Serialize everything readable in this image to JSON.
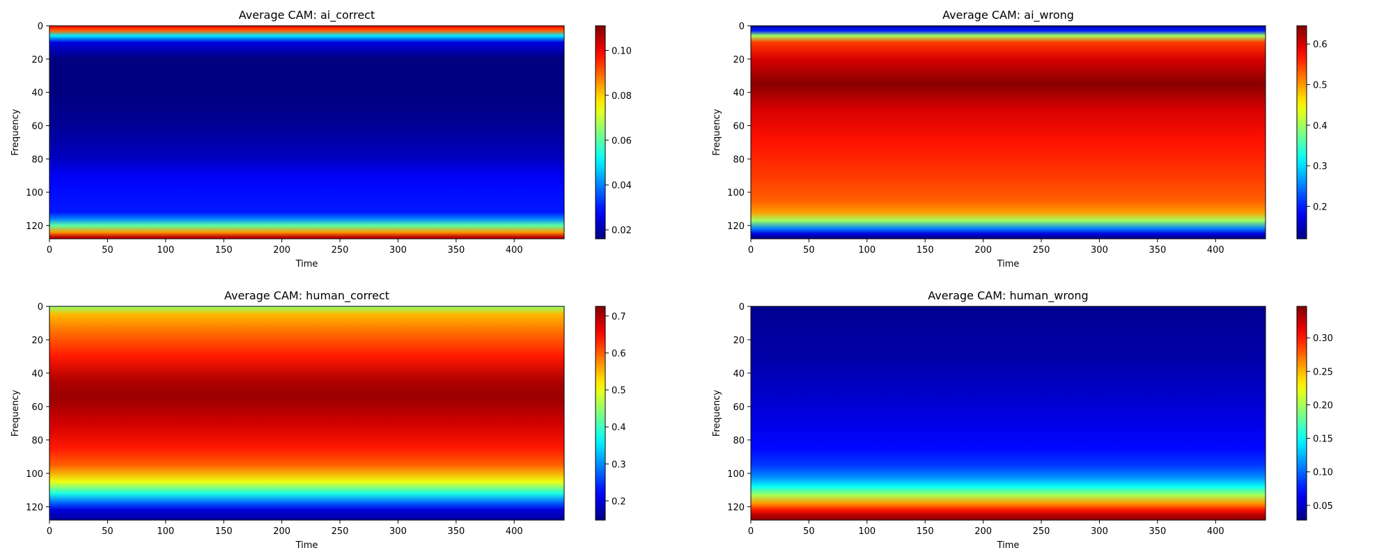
{
  "chart_data": [
    {
      "type": "heatmap",
      "title": "Average CAM: ai_correct",
      "xlabel": "Time",
      "ylabel": "Frequency",
      "xlim": [
        0,
        443
      ],
      "ylim": [
        128,
        0
      ],
      "xticks": [
        0,
        50,
        100,
        150,
        200,
        250,
        300,
        350,
        400
      ],
      "yticks": [
        0,
        20,
        40,
        60,
        80,
        100,
        120
      ],
      "colormap": "jet",
      "clim": [
        0.016,
        0.111
      ],
      "colorbar_ticks": [
        "0.02",
        "0.04",
        "0.06",
        "0.08",
        "0.10"
      ],
      "colorbar_tick_values": [
        0.02,
        0.04,
        0.06,
        0.08,
        0.1
      ],
      "row_profile": {
        "frequency": [
          0,
          3,
          6,
          10,
          20,
          40,
          60,
          80,
          90,
          100,
          112,
          116,
          120,
          124,
          127
        ],
        "value": [
          0.1,
          0.09,
          0.05,
          0.025,
          0.016,
          0.016,
          0.018,
          0.022,
          0.027,
          0.029,
          0.03,
          0.04,
          0.06,
          0.085,
          0.105
        ]
      }
    },
    {
      "type": "heatmap",
      "title": "Average CAM: ai_wrong",
      "xlabel": "Time",
      "ylabel": "Frequency",
      "xlim": [
        0,
        443
      ],
      "ylim": [
        128,
        0
      ],
      "xticks": [
        0,
        50,
        100,
        150,
        200,
        250,
        300,
        350,
        400
      ],
      "yticks": [
        0,
        20,
        40,
        60,
        80,
        100,
        120
      ],
      "colormap": "jet",
      "clim": [
        0.12,
        0.645
      ],
      "colorbar_ticks": [
        "0.2",
        "0.3",
        "0.4",
        "0.5",
        "0.6"
      ],
      "colorbar_tick_values": [
        0.2,
        0.3,
        0.4,
        0.5,
        0.6
      ],
      "row_profile": {
        "frequency": [
          0,
          3,
          6,
          10,
          20,
          35,
          50,
          70,
          90,
          105,
          112,
          117,
          122,
          125,
          127
        ],
        "value": [
          0.14,
          0.2,
          0.4,
          0.55,
          0.6,
          0.64,
          0.6,
          0.57,
          0.55,
          0.53,
          0.5,
          0.4,
          0.25,
          0.17,
          0.13
        ]
      }
    },
    {
      "type": "heatmap",
      "title": "Average CAM: human_correct",
      "xlabel": "Time",
      "ylabel": "Frequency",
      "xlim": [
        0,
        443
      ],
      "ylim": [
        128,
        0
      ],
      "xticks": [
        0,
        50,
        100,
        150,
        200,
        250,
        300,
        350,
        400
      ],
      "yticks": [
        0,
        20,
        40,
        60,
        80,
        100,
        120
      ],
      "colormap": "jet",
      "clim": [
        0.148,
        0.726
      ],
      "colorbar_ticks": [
        "0.2",
        "0.3",
        "0.4",
        "0.5",
        "0.6",
        "0.7"
      ],
      "colorbar_tick_values": [
        0.2,
        0.3,
        0.4,
        0.5,
        0.6,
        0.7
      ],
      "row_profile": {
        "frequency": [
          0,
          5,
          15,
          30,
          45,
          55,
          70,
          85,
          95,
          105,
          112,
          118,
          122,
          127
        ],
        "value": [
          0.45,
          0.55,
          0.59,
          0.64,
          0.7,
          0.71,
          0.68,
          0.64,
          0.6,
          0.5,
          0.38,
          0.27,
          0.2,
          0.17
        ]
      }
    },
    {
      "type": "heatmap",
      "title": "Average CAM: human_wrong",
      "xlabel": "Time",
      "ylabel": "Frequency",
      "xlim": [
        0,
        443
      ],
      "ylim": [
        128,
        0
      ],
      "xticks": [
        0,
        50,
        100,
        150,
        200,
        250,
        300,
        350,
        400
      ],
      "yticks": [
        0,
        20,
        40,
        60,
        80,
        100,
        120
      ],
      "colormap": "jet",
      "clim": [
        0.028,
        0.347
      ],
      "colorbar_ticks": [
        "0.05",
        "0.10",
        "0.15",
        "0.20",
        "0.25",
        "0.30"
      ],
      "colorbar_tick_values": [
        0.05,
        0.1,
        0.15,
        0.2,
        0.25,
        0.3
      ],
      "row_profile": {
        "frequency": [
          0,
          10,
          30,
          50,
          70,
          85,
          95,
          102,
          108,
          113,
          118,
          122,
          125,
          127
        ],
        "value": [
          0.033,
          0.036,
          0.04,
          0.05,
          0.06,
          0.07,
          0.085,
          0.11,
          0.15,
          0.2,
          0.26,
          0.3,
          0.33,
          0.34
        ]
      }
    }
  ]
}
